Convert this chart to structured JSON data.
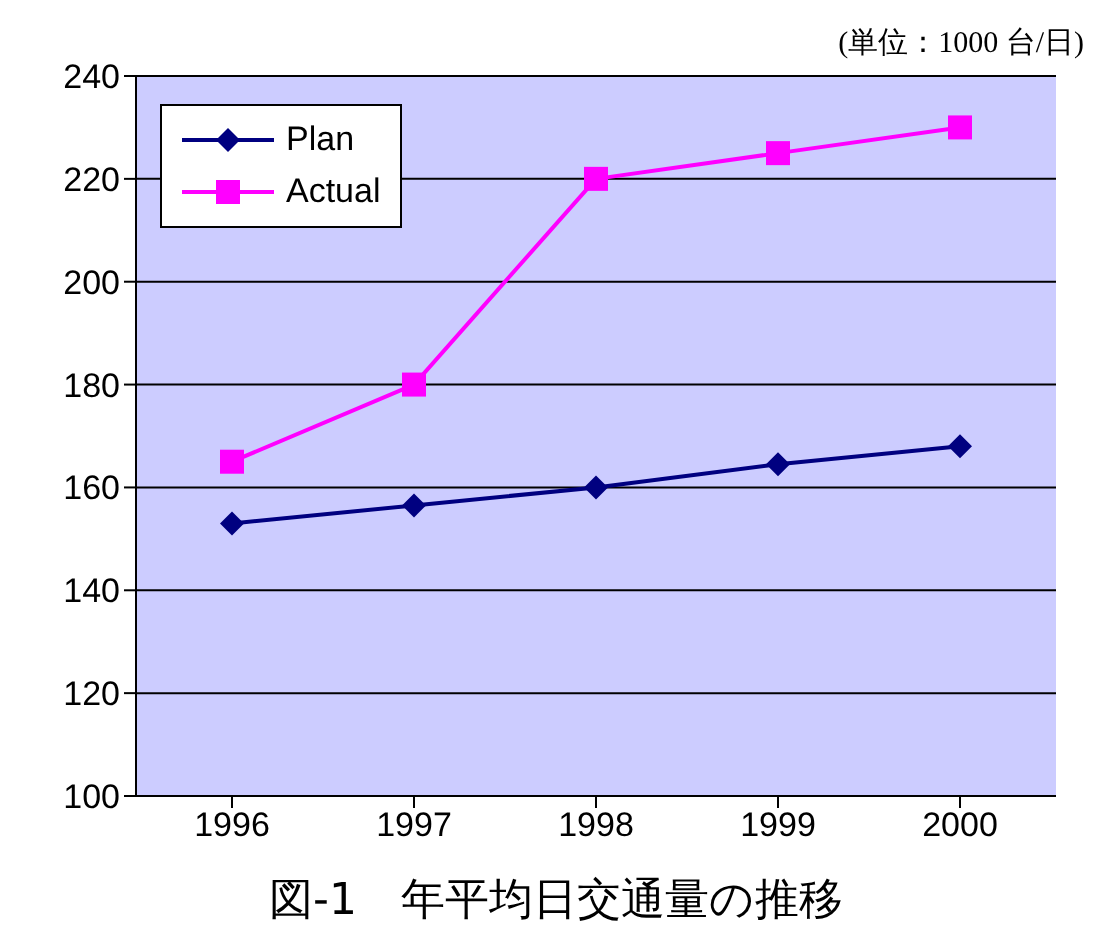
{
  "chart_data": {
    "type": "line",
    "title": "図-1　年平均日交通量の推移",
    "annotations": [
      "(単位：1000 台/日)"
    ],
    "categories": [
      "1996",
      "1997",
      "1998",
      "1999",
      "2000"
    ],
    "series": [
      {
        "name": "Plan",
        "color": "#000080",
        "values": [
          153,
          156.5,
          160,
          164.5,
          168
        ],
        "marker": "diamond"
      },
      {
        "name": "Actual",
        "color": "#ff00ff",
        "values": [
          165,
          180,
          220,
          225,
          230
        ],
        "marker": "square"
      }
    ],
    "ylim": [
      100,
      240
    ],
    "yticks": [
      100,
      120,
      140,
      160,
      180,
      200,
      220,
      240
    ],
    "grid": "y",
    "legend": "top left"
  }
}
